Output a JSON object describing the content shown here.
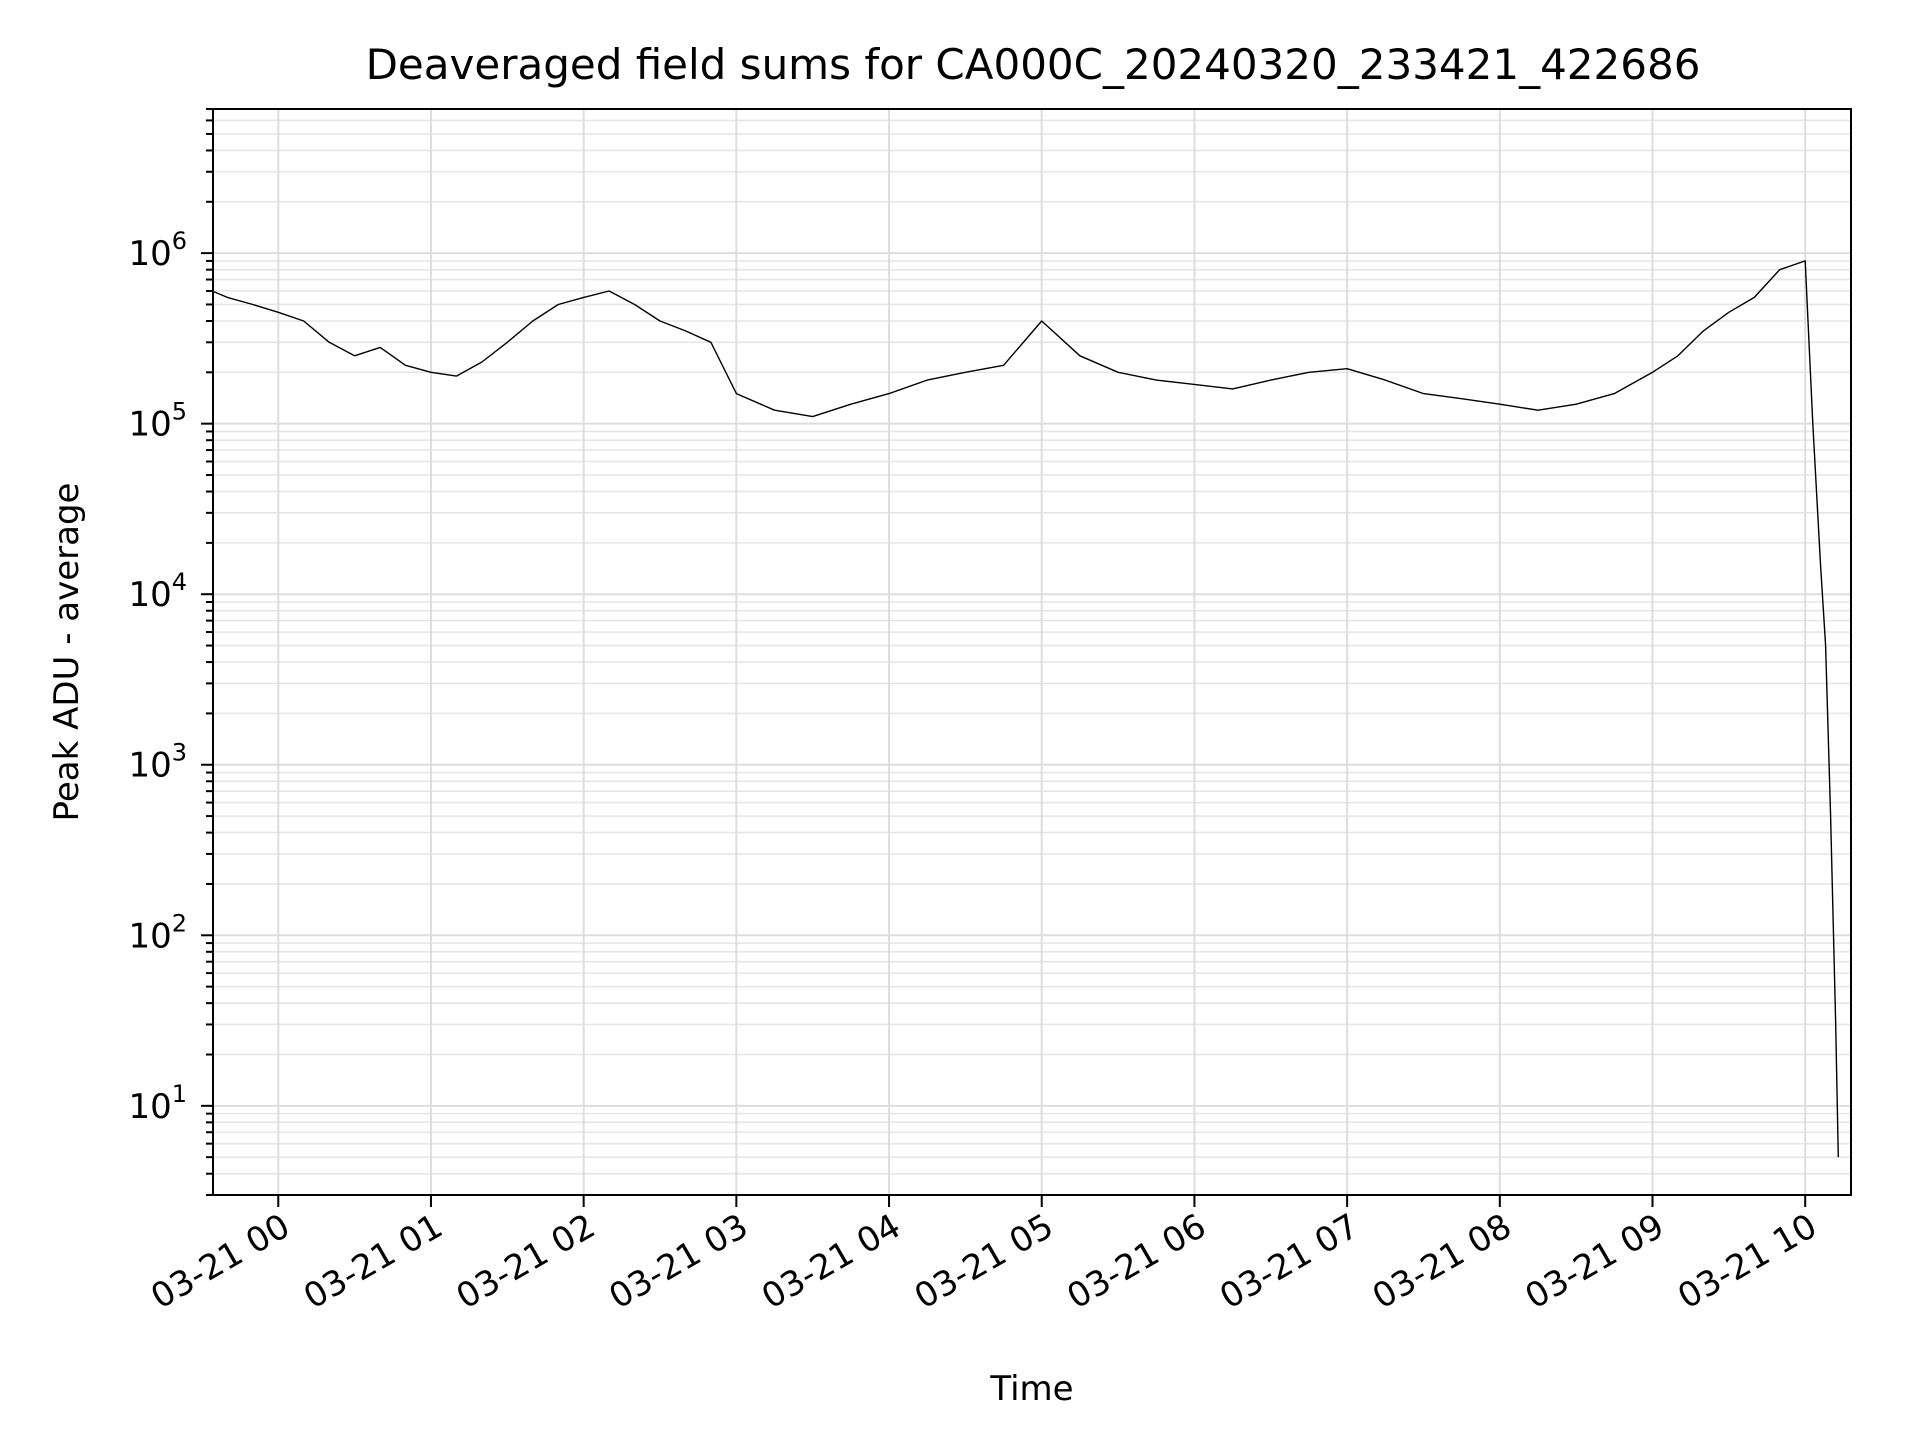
{
  "chart_data": {
    "type": "line",
    "title": "Deaveraged field sums for CA000C_20240320_233421_422686",
    "xlabel": "Time",
    "ylabel": "Peak ADU - average",
    "y_scale": "log",
    "ylim": [
      3,
      7000000
    ],
    "xlim": [
      "2024-03-20 23:34:21",
      "2024-03-21 10:18:00"
    ],
    "x_tick_labels": [
      "03-21 00",
      "03-21 01",
      "03-21 02",
      "03-21 03",
      "03-21 04",
      "03-21 05",
      "03-21 06",
      "03-21 07",
      "03-21 08",
      "03-21 09",
      "03-21 10"
    ],
    "x_ticks": [
      "2024-03-21 00:00",
      "2024-03-21 01:00",
      "2024-03-21 02:00",
      "2024-03-21 03:00",
      "2024-03-21 04:00",
      "2024-03-21 05:00",
      "2024-03-21 06:00",
      "2024-03-21 07:00",
      "2024-03-21 08:00",
      "2024-03-21 09:00",
      "2024-03-21 10:00"
    ],
    "y_ticks": [
      {
        "value": 10,
        "base": "10",
        "exp": "1"
      },
      {
        "value": 100,
        "base": "10",
        "exp": "2"
      },
      {
        "value": 1000,
        "base": "10",
        "exp": "3"
      },
      {
        "value": 10000,
        "base": "10",
        "exp": "4"
      },
      {
        "value": 100000,
        "base": "10",
        "exp": "5"
      },
      {
        "value": 1000000,
        "base": "10",
        "exp": "6"
      }
    ],
    "grid": true,
    "series": [
      {
        "color": "#000000",
        "x": [
          "2024-03-20 23:34",
          "2024-03-20 23:40",
          "2024-03-20 23:50",
          "2024-03-21 00:00",
          "2024-03-21 00:10",
          "2024-03-21 00:20",
          "2024-03-21 00:30",
          "2024-03-21 00:40",
          "2024-03-21 00:50",
          "2024-03-21 01:00",
          "2024-03-21 01:10",
          "2024-03-21 01:20",
          "2024-03-21 01:30",
          "2024-03-21 01:40",
          "2024-03-21 01:50",
          "2024-03-21 02:00",
          "2024-03-21 02:10",
          "2024-03-21 02:20",
          "2024-03-21 02:30",
          "2024-03-21 02:40",
          "2024-03-21 02:50",
          "2024-03-21 03:00",
          "2024-03-21 03:15",
          "2024-03-21 03:30",
          "2024-03-21 03:45",
          "2024-03-21 04:00",
          "2024-03-21 04:15",
          "2024-03-21 04:30",
          "2024-03-21 04:45",
          "2024-03-21 05:00",
          "2024-03-21 05:15",
          "2024-03-21 05:30",
          "2024-03-21 05:45",
          "2024-03-21 06:00",
          "2024-03-21 06:15",
          "2024-03-21 06:30",
          "2024-03-21 06:45",
          "2024-03-21 07:00",
          "2024-03-21 07:15",
          "2024-03-21 07:30",
          "2024-03-21 07:45",
          "2024-03-21 08:00",
          "2024-03-21 08:15",
          "2024-03-21 08:30",
          "2024-03-21 08:45",
          "2024-03-21 09:00",
          "2024-03-21 09:10",
          "2024-03-21 09:20",
          "2024-03-21 09:30",
          "2024-03-21 09:40",
          "2024-03-21 09:50",
          "2024-03-21 10:00",
          "2024-03-21 10:03",
          "2024-03-21 10:06",
          "2024-03-21 10:08",
          "2024-03-21 10:10",
          "2024-03-21 10:12",
          "2024-03-21 10:13"
        ],
        "y": [
          600000,
          550000,
          500000,
          450000,
          400000,
          300000,
          250000,
          280000,
          220000,
          200000,
          190000,
          230000,
          300000,
          400000,
          500000,
          550000,
          600000,
          500000,
          400000,
          350000,
          300000,
          150000,
          120000,
          110000,
          130000,
          150000,
          180000,
          200000,
          220000,
          400000,
          250000,
          200000,
          180000,
          170000,
          160000,
          180000,
          200000,
          210000,
          180000,
          150000,
          140000,
          130000,
          120000,
          130000,
          150000,
          200000,
          250000,
          350000,
          450000,
          550000,
          800000,
          900000,
          100000,
          15000,
          5000,
          500,
          30,
          5
        ]
      }
    ]
  }
}
